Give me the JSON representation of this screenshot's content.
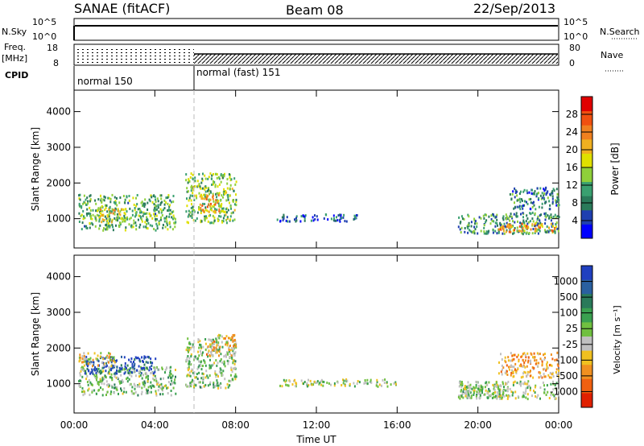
{
  "header": {
    "station": "SANAE (fitACF)",
    "beam": "Beam 08",
    "date": "22/Sep/2013"
  },
  "strip_labels": {
    "nsky": "N.Sky",
    "nsky_top": "10^5",
    "nsky_bottom": "10^0",
    "nsearch": "N.Search",
    "nsearch_top": "10^5",
    "nsearch_bottom": "10^0",
    "freq": "Freq.",
    "freq_unit": "[MHz]",
    "freq_top": "18",
    "freq_bottom": "8",
    "nave": "Nave",
    "nave_top": "80",
    "nave_bottom": "0",
    "cpid": "CPID",
    "mode1": "normal 150",
    "mode2": "normal (fast) 151"
  },
  "axes": {
    "ylabel": "Slant Range [km]",
    "xlabel": "Time UT",
    "yticks": [
      "1000",
      "2000",
      "3000",
      "4000"
    ],
    "xticks": [
      "00:00",
      "04:00",
      "08:00",
      "12:00",
      "16:00",
      "20:00",
      "00:00"
    ]
  },
  "colorbars": {
    "power": {
      "label": "Power [dB]",
      "ticks": [
        "4",
        "8",
        "12",
        "16",
        "20",
        "24",
        "28"
      ],
      "colors": [
        "#0000ff",
        "#1f3fb0",
        "#2a7a5a",
        "#3aa070",
        "#8fd03a",
        "#e0e000",
        "#f0b020",
        "#f08020",
        "#f05010",
        "#e00000"
      ]
    },
    "velocity": {
      "label": "Velocity [m s⁻¹]",
      "ticks": [
        "1000",
        "500",
        "100",
        "25",
        "-25",
        "-100",
        "-500",
        "-1000"
      ],
      "colors": [
        "#2040c0",
        "#2a60a0",
        "#2a7a5a",
        "#3aa050",
        "#70c040",
        "#c0c0c0",
        "#f0c020",
        "#f09020",
        "#f06010",
        "#e02000"
      ]
    }
  },
  "chart_data": [
    {
      "type": "heatmap",
      "name": "Power",
      "xlabel": "Time UT",
      "ylabel": "Slant Range [km]",
      "xlim": [
        0,
        24
      ],
      "ylim": [
        180,
        4600
      ],
      "zlabel": "Power [dB]",
      "zlim": [
        0,
        32
      ],
      "blobs": [
        {
          "t0": 0.2,
          "t1": 5.0,
          "r0": 700,
          "r1": 1700,
          "level": 12
        },
        {
          "t0": 1.0,
          "t1": 2.5,
          "r0": 900,
          "r1": 1300,
          "level": 18
        },
        {
          "t0": 5.5,
          "t1": 8.0,
          "r0": 900,
          "r1": 2300,
          "level": 14
        },
        {
          "t0": 6.2,
          "t1": 7.2,
          "r0": 1200,
          "r1": 1700,
          "level": 22
        },
        {
          "t0": 10.0,
          "t1": 14.0,
          "r0": 950,
          "r1": 1150,
          "level": 6
        },
        {
          "t0": 19.0,
          "t1": 24.0,
          "r0": 600,
          "r1": 1200,
          "level": 10
        },
        {
          "t0": 21.0,
          "t1": 24.0,
          "r0": 650,
          "r1": 900,
          "level": 22
        },
        {
          "t0": 21.5,
          "t1": 24.0,
          "r0": 1300,
          "r1": 1900,
          "level": 8
        }
      ]
    },
    {
      "type": "heatmap",
      "name": "Velocity",
      "xlabel": "Time UT",
      "ylabel": "Slant Range [km]",
      "xlim": [
        0,
        24
      ],
      "ylim": [
        180,
        4600
      ],
      "zlabel": "Velocity [m s⁻¹]",
      "zlim": [
        -1000,
        1000
      ],
      "blobs": [
        {
          "t0": 0.2,
          "t1": 5.0,
          "r0": 700,
          "r1": 1500,
          "level": 100
        },
        {
          "t0": 0.5,
          "t1": 4.0,
          "r0": 1300,
          "r1": 1800,
          "level": 800
        },
        {
          "t0": 0.2,
          "t1": 2.0,
          "r0": 1500,
          "r1": 1900,
          "level": -200
        },
        {
          "t0": 5.5,
          "t1": 8.0,
          "r0": 900,
          "r1": 2300,
          "level": 60
        },
        {
          "t0": 6.5,
          "t1": 8.0,
          "r0": 1800,
          "r1": 2400,
          "level": -300
        },
        {
          "t0": 10.0,
          "t1": 16.0,
          "r0": 950,
          "r1": 1150,
          "level": 0
        },
        {
          "t0": 19.0,
          "t1": 24.0,
          "r0": 600,
          "r1": 1100,
          "level": 0
        },
        {
          "t0": 19.0,
          "t1": 21.5,
          "r0": 600,
          "r1": 1000,
          "level": 80
        },
        {
          "t0": 21.0,
          "t1": 24.0,
          "r0": 1200,
          "r1": 1900,
          "level": -400
        }
      ]
    }
  ]
}
